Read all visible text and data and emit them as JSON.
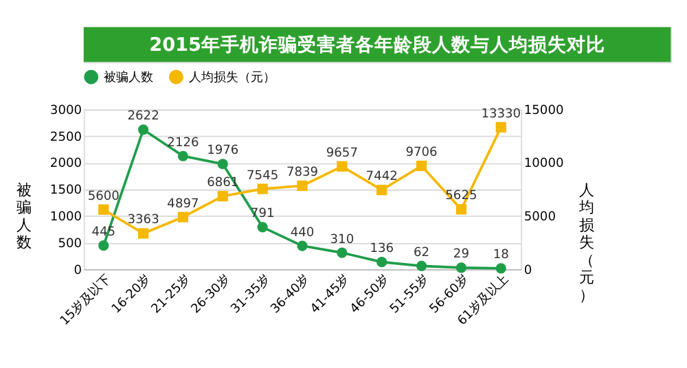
{
  "chart_data": {
    "type": "line",
    "title": "2015年手机诈骗受害者各年龄段人数与人均损失对比",
    "categories": [
      "15岁及以下",
      "16-20岁",
      "21-25岁",
      "26-30岁",
      "31-35岁",
      "36-40岁",
      "41-45岁",
      "46-50岁",
      "51-55岁",
      "56-60岁",
      "61岁及以上"
    ],
    "series": [
      {
        "name": "被骗人数",
        "color": "#1f9e4a",
        "marker": "circle",
        "values": [
          445,
          2622,
          2126,
          1976,
          791,
          440,
          310,
          136,
          62,
          29,
          18
        ]
      },
      {
        "name": "人均损失（元）",
        "color": "#f5b800",
        "marker": "square",
        "axis": "y2",
        "values": [
          5600,
          3363,
          4897,
          6861,
          7545,
          7839,
          9657,
          7442,
          9706,
          5625,
          13330
        ]
      }
    ],
    "ylabel": "被骗人数",
    "y2label": "人均损失（元）",
    "ylim": [
      0,
      3000
    ],
    "yticks": [
      0,
      500,
      1000,
      1500,
      2000,
      2500,
      3000
    ],
    "y2lim": [
      0,
      15000
    ],
    "y2ticks": [
      0,
      5000,
      10000,
      15000
    ],
    "grid": "y",
    "legend": "top",
    "data_labels": true
  }
}
